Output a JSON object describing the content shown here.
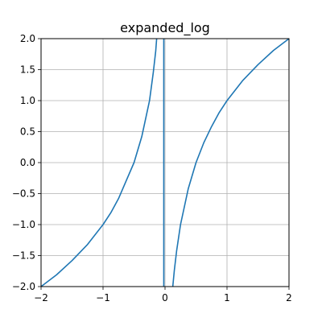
{
  "chart_data": {
    "type": "line",
    "title": "expanded_log",
    "xlabel": "",
    "ylabel": "",
    "xlim": [
      -2,
      2
    ],
    "ylim": [
      -2,
      2
    ],
    "grid": true,
    "xticks": [
      -2,
      -1,
      0,
      1,
      2
    ],
    "yticks": [
      -2.0,
      -1.5,
      -1.0,
      -0.5,
      0.0,
      0.5,
      1.0,
      1.5,
      2.0
    ],
    "xtick_labels": [
      "−2",
      "−1",
      "0",
      "1",
      "2"
    ],
    "ytick_labels": [
      "−2.0",
      "−1.5",
      "−1.0",
      "−0.5",
      "0.0",
      "0.5",
      "1.0",
      "1.5",
      "2.0"
    ],
    "series": [
      {
        "color": "#1f77b4",
        "points": [
          [
            -2.0,
            -2.0
          ],
          [
            -1.75,
            -1.81
          ],
          [
            -1.5,
            -1.58
          ],
          [
            -1.25,
            -1.32
          ],
          [
            -1.0,
            -1.0
          ],
          [
            -0.875,
            -0.81
          ],
          [
            -0.75,
            -0.58
          ],
          [
            -0.625,
            -0.29
          ],
          [
            -0.5,
            0.0
          ],
          [
            -0.375,
            0.42
          ],
          [
            -0.25,
            1.0
          ],
          [
            -0.19,
            1.45
          ],
          [
            -0.15,
            1.8
          ],
          [
            -0.135,
            2.0
          ]
        ]
      },
      {
        "color": "#1f77b4",
        "points": [
          [
            -0.02,
            2.0
          ],
          [
            -0.02,
            -2.0
          ]
        ]
      },
      {
        "color": "#1f77b4",
        "points": [
          [
            0.125,
            -2.0
          ],
          [
            0.15,
            -1.74
          ],
          [
            0.1875,
            -1.42
          ],
          [
            0.25,
            -1.0
          ],
          [
            0.375,
            -0.42
          ],
          [
            0.5,
            0.0
          ],
          [
            0.625,
            0.32
          ],
          [
            0.75,
            0.58
          ],
          [
            0.875,
            0.81
          ],
          [
            1.0,
            1.0
          ],
          [
            1.25,
            1.32
          ],
          [
            1.5,
            1.58
          ],
          [
            1.75,
            1.81
          ],
          [
            2.0,
            2.0
          ]
        ]
      }
    ]
  }
}
